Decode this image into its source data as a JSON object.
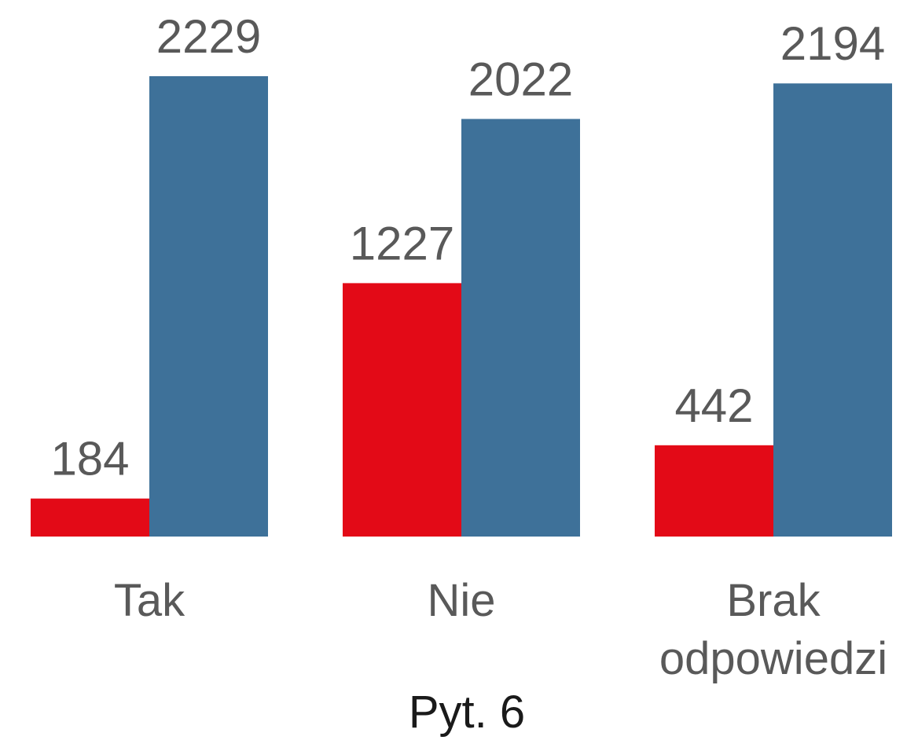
{
  "chart_data": {
    "type": "bar",
    "xlabel": "Pyt. 6",
    "categories": [
      "Tak",
      "Nie",
      "Brak odpowiedzi"
    ],
    "series": [
      {
        "color": "#e30a17",
        "values": [
          184,
          1227,
          442
        ]
      },
      {
        "color": "#3e7199",
        "values": [
          2229,
          2022,
          2194
        ]
      }
    ],
    "grid": false
  }
}
